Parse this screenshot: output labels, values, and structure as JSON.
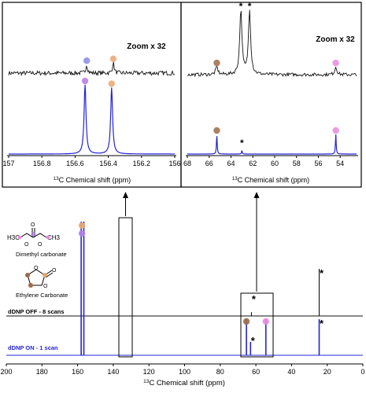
{
  "chart_data": [
    {
      "type": "line",
      "panel": "inset-left",
      "title": "Zoom x 32",
      "xlabel": "13C Chemical shift (ppm)",
      "xlabel_sup": "13",
      "xlabel_rest": "C Chemical shift (ppm)",
      "xlim": [
        157.0,
        156.0
      ],
      "xticks": [
        "157",
        "156.8",
        "156.6",
        "156.4",
        "156.2",
        "156"
      ],
      "series": [
        {
          "color": "#111111",
          "peaks": [
            {
              "x": 156.53,
              "height": 0.18
            },
            {
              "x": 156.37,
              "height": 0.22
            }
          ]
        },
        {
          "color": "#2424d8",
          "peaks": [
            {
              "x": 156.54,
              "height": 1.0
            },
            {
              "x": 156.38,
              "height": 0.96
            }
          ]
        }
      ],
      "markers": [
        {
          "x": 156.53,
          "color": "#8a8ae6",
          "on": "dark"
        },
        {
          "x": 156.37,
          "color": "#e8a870",
          "on": "dark"
        },
        {
          "x": 156.54,
          "color": "#b07ee8",
          "on": "blue"
        },
        {
          "x": 156.38,
          "color": "#e8a870",
          "on": "blue"
        }
      ]
    },
    {
      "type": "line",
      "panel": "inset-right",
      "title": "Zoom x 32",
      "xlabel": "13C Chemical shift (ppm)",
      "xlabel_sup": "13",
      "xlabel_rest": "C Chemical shift (ppm)",
      "xlim": [
        68,
        52.5
      ],
      "xticks": [
        "68",
        "66",
        "64",
        "62",
        "60",
        "58",
        "56",
        "54"
      ],
      "series": [
        {
          "color": "#111111",
          "peaks": [
            {
              "x": 65.3,
              "height": 0.12
            },
            {
              "x": 63.1,
              "height": 1.0
            },
            {
              "x": 62.3,
              "height": 1.0
            },
            {
              "x": 54.4,
              "height": 0.12
            }
          ]
        },
        {
          "color": "#2424d8",
          "peaks": [
            {
              "x": 65.3,
              "height": 1.0
            },
            {
              "x": 63.0,
              "height": 0.18
            },
            {
              "x": 54.4,
              "height": 1.0
            }
          ]
        }
      ],
      "markers": [
        {
          "x": 65.3,
          "color": "#9c6b4a",
          "on": "dark"
        },
        {
          "x": 54.4,
          "color": "#e88ae0",
          "on": "dark"
        },
        {
          "x": 65.3,
          "color": "#9c6b4a",
          "on": "blue"
        },
        {
          "x": 54.4,
          "color": "#e88ae0",
          "on": "blue"
        }
      ],
      "annotations": [
        "*",
        "*",
        "*"
      ]
    },
    {
      "type": "line",
      "panel": "main",
      "xlabel": "13C Chemical shift (ppm)",
      "xlabel_sup": "13",
      "xlabel_rest": "C Chemical shift (ppm)",
      "xlim": [
        200,
        0
      ],
      "xticks": [
        "200",
        "180",
        "160",
        "140",
        "120",
        "100",
        "80",
        "60",
        "40",
        "20",
        "0"
      ],
      "series": [
        {
          "name": "dDNP OFF - 8 scans",
          "color": "#111111",
          "peaks": [
            {
              "x": 62.5,
              "height": 0.08
            },
            {
              "x": 24.5,
              "height": 1.0
            }
          ]
        },
        {
          "name": "dDNP ON - 1 scan",
          "color": "#2424d8",
          "peaks": [
            {
              "x": 158.0,
              "height": 1.0
            },
            {
              "x": 156.5,
              "height": 1.0
            },
            {
              "x": 65.3,
              "height": 1.0
            },
            {
              "x": 63.0,
              "height": 0.22
            },
            {
              "x": 54.4,
              "height": 1.0
            },
            {
              "x": 24.5,
              "height": 1.0
            }
          ]
        }
      ],
      "markers": [
        {
          "x": 158.0,
          "color": "#e8a870",
          "on": "blue"
        },
        {
          "x": 158.0,
          "color": "#b07ee8",
          "on": "blue"
        },
        {
          "x": 65.3,
          "color": "#9c6b4a",
          "on": "blue"
        },
        {
          "x": 54.4,
          "color": "#e88ae0",
          "on": "blue"
        }
      ],
      "annotations": [
        "*",
        "*",
        "*",
        "*"
      ]
    }
  ],
  "molecules": {
    "dimethyl_label": "Dimethyl carbonate",
    "ethylene_label": "Ethylene Carbonate",
    "atom_h3c": "H3C",
    "atom_ch3": "CH3",
    "atom_o": "O"
  },
  "colors": {
    "blue_spectrum": "#2424d8",
    "dark_spectrum": "#111111",
    "methyl_pink": "#e88ae0",
    "carbonyl_orange": "#e8a870",
    "carbonyl_purple": "#b07ee8",
    "ethylene_brown": "#9c6b4a"
  }
}
